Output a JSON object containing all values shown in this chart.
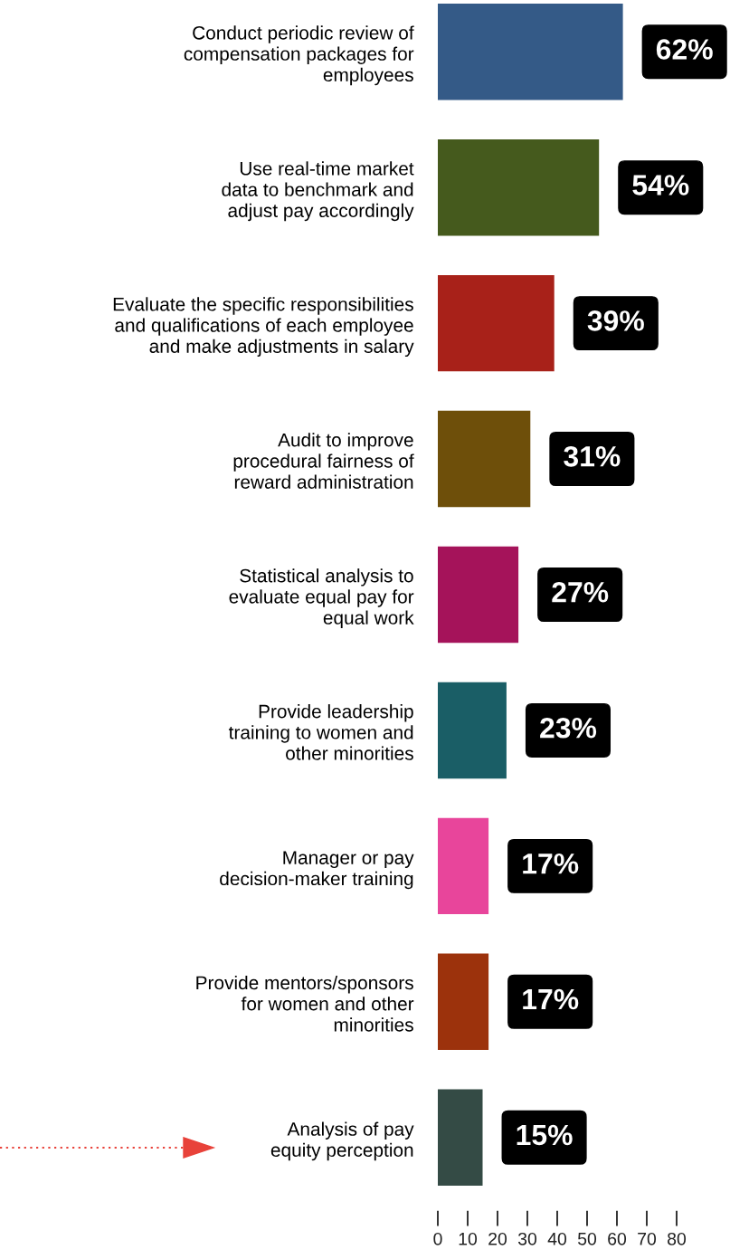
{
  "chart_data": {
    "type": "bar",
    "orientation": "horizontal",
    "categories": [
      "Conduct periodic review of\ncompensation packages for\nemployees",
      "Use real-time market\ndata to benchmark and\nadjust pay accordingly",
      "Evaluate the specific responsibilities\nand qualifications of each employee\nand make adjustments in salary",
      "Audit to improve\nprocedural fairness of\nreward administration",
      "Statistical analysis to\nevaluate equal pay for\nequal work",
      "Provide leadership\ntraining to women and\nother minorities",
      "Manager or pay\ndecision-maker training",
      "Provide mentors/sponsors\nfor women and other\nminorities",
      "Analysis of pay\nequity perception"
    ],
    "values": [
      62,
      54,
      39,
      31,
      27,
      23,
      17,
      17,
      15
    ],
    "value_labels": [
      "62%",
      "54%",
      "39%",
      "31%",
      "27%",
      "23%",
      "17%",
      "17%",
      "15%"
    ],
    "colors": [
      "#345a87",
      "#455a1d",
      "#a82119",
      "#6e4f0a",
      "#a5135a",
      "#1a5e66",
      "#e8459b",
      "#9c320c",
      "#344b45"
    ],
    "xlim": [
      0,
      80
    ],
    "xticks": [
      0,
      10,
      20,
      30,
      40,
      50,
      60,
      70,
      80
    ],
    "grid": false,
    "legend": false
  }
}
